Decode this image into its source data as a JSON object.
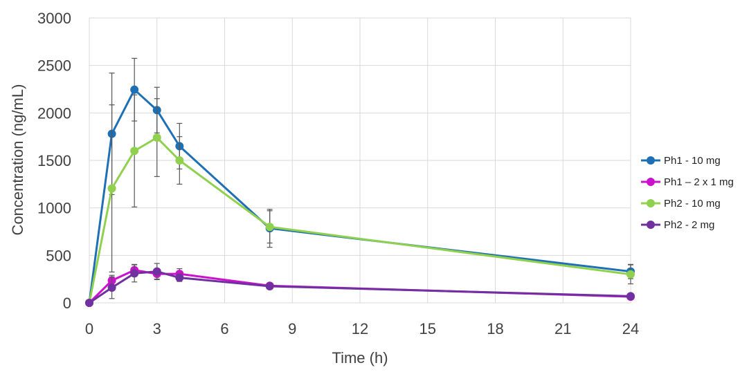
{
  "chart_data": {
    "type": "line",
    "xlabel": "Time (h)",
    "ylabel": "Concentration (ng/mL)",
    "xlim": [
      0,
      24
    ],
    "ylim": [
      0,
      3000
    ],
    "xticks": [
      "0",
      "3",
      "6",
      "9",
      "12",
      "15",
      "18",
      "21",
      "24"
    ],
    "yticks": [
      "0",
      "500",
      "1000",
      "1500",
      "2000",
      "2500",
      "3000"
    ],
    "grid": true,
    "legend_position": "right",
    "x": [
      0,
      1,
      2,
      3,
      4,
      8,
      24
    ],
    "series": [
      {
        "name": "Ph1 - 10 mg",
        "color": "#1f6fb4",
        "values": [
          0,
          1780,
          2245,
          2030,
          1650,
          785,
          330
        ],
        "error": [
          0,
          640,
          330,
          240,
          240,
          200,
          75
        ]
      },
      {
        "name": "Ph1 – 2 x 1 mg",
        "color": "#cc11cc",
        "values": [
          0,
          235,
          345,
          305,
          305,
          180,
          65
        ],
        "error": [
          0,
          55,
          60,
          55,
          55,
          15,
          10
        ]
      },
      {
        "name": "Ph2 - 10 mg",
        "color": "#8fd14f",
        "values": [
          0,
          1205,
          1600,
          1740,
          1500,
          800,
          300
        ],
        "error": [
          0,
          880,
          590,
          410,
          250,
          170,
          100
        ]
      },
      {
        "name": "Ph2 - 2 mg",
        "color": "#7030a0",
        "values": [
          0,
          160,
          310,
          330,
          265,
          175,
          70
        ],
        "error": [
          0,
          115,
          90,
          85,
          40,
          20,
          10
        ]
      }
    ]
  }
}
